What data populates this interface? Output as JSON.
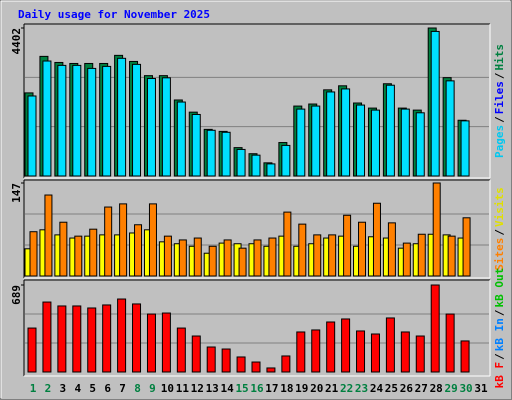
{
  "title": "Daily usage for November 2025",
  "categories": [
    "1",
    "2",
    "3",
    "4",
    "5",
    "6",
    "7",
    "8",
    "9",
    "10",
    "11",
    "12",
    "13",
    "14",
    "15",
    "16",
    "17",
    "18",
    "19",
    "20",
    "21",
    "22",
    "23",
    "24",
    "25",
    "26",
    "27",
    "28",
    "29",
    "30",
    "31"
  ],
  "category_colors": [
    "#008040",
    "#008040",
    "#000000",
    "#000000",
    "#000000",
    "#000000",
    "#000000",
    "#008040",
    "#008040",
    "#000000",
    "#000000",
    "#000000",
    "#000000",
    "#000000",
    "#008040",
    "#008040",
    "#000000",
    "#000000",
    "#000000",
    "#000000",
    "#000000",
    "#008040",
    "#008040",
    "#000000",
    "#000000",
    "#000000",
    "#000000",
    "#000000",
    "#008040",
    "#008040",
    "#000000"
  ],
  "chart_data": [
    {
      "type": "bar",
      "ylim": [
        0,
        4402
      ],
      "yticks": [
        4402
      ],
      "legend": [
        {
          "label": "Pages",
          "color": "#00c8f0"
        },
        {
          "label": "/",
          "color": "#000000"
        },
        {
          "label": "Files",
          "color": "#0000ff"
        },
        {
          "label": "/",
          "color": "#000000"
        },
        {
          "label": "Hits",
          "color": "#008040"
        }
      ],
      "series": [
        {
          "name": "Hits",
          "color": "#008040",
          "values": [
            2472,
            3558,
            3377,
            3347,
            3347,
            3347,
            3588,
            3407,
            2985,
            2985,
            2261,
            1899,
            1387,
            1327,
            844,
            663,
            392,
            995,
            2080,
            2141,
            2563,
            2683,
            2171,
            2020,
            2744,
            2020,
            1960,
            4402,
            2925,
            1658,
            null
          ]
        },
        {
          "name": "Pages",
          "color": "#00e0ff",
          "values": [
            2380,
            3420,
            3290,
            3290,
            3200,
            3260,
            3500,
            3320,
            2900,
            2920,
            2200,
            1830,
            1360,
            1300,
            790,
            620,
            360,
            910,
            1990,
            2080,
            2500,
            2590,
            2110,
            1960,
            2700,
            1990,
            1880,
            4300,
            2830,
            1640,
            null
          ]
        }
      ]
    },
    {
      "type": "bar",
      "ylim": [
        0,
        147
      ],
      "yticks": [
        147
      ],
      "legend": [
        {
          "label": "Sites",
          "color": "#ff8000"
        },
        {
          "label": "/",
          "color": "#000000"
        },
        {
          "label": "Visits",
          "color": "#e0e000"
        }
      ],
      "series": [
        {
          "name": "Visits",
          "color": "#ffff00",
          "values": [
            43,
            73,
            65,
            60,
            63,
            65,
            65,
            68,
            73,
            54,
            51,
            47,
            36,
            52,
            51,
            51,
            47,
            63,
            47,
            51,
            60,
            63,
            47,
            62,
            60,
            44,
            51,
            66,
            65,
            60,
            null
          ]
        },
        {
          "name": "Sites",
          "color": "#ff8000",
          "values": [
            70,
            128,
            85,
            63,
            74,
            109,
            114,
            81,
            114,
            63,
            57,
            60,
            47,
            57,
            44,
            57,
            60,
            101,
            82,
            65,
            65,
            96,
            85,
            115,
            84,
            52,
            66,
            147,
            63,
            92,
            null
          ]
        }
      ]
    },
    {
      "type": "bar",
      "ylim": [
        0,
        689
      ],
      "yticks": [
        689
      ],
      "legend": [
        {
          "label": "kB F",
          "color": "#ff0000"
        },
        {
          "label": "/",
          "color": "#000000"
        },
        {
          "label": "kB In",
          "color": "#0080ff"
        },
        {
          "label": "/",
          "color": "#000000"
        },
        {
          "label": "kB Out",
          "color": "#00c000"
        }
      ],
      "series": [
        {
          "name": "kB F",
          "color": "#ff0000",
          "values": [
            348,
            554,
            523,
            523,
            507,
            531,
            578,
            539,
            459,
            467,
            348,
            285,
            198,
            182,
            119,
            79,
            32,
            127,
            317,
            333,
            396,
            420,
            325,
            301,
            428,
            317,
            285,
            689,
            459,
            246,
            null
          ]
        }
      ]
    }
  ]
}
